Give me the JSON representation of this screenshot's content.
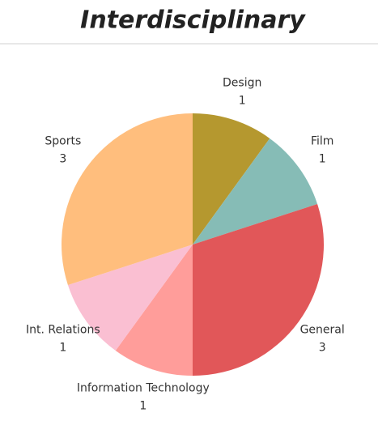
{
  "chart_data": {
    "type": "pie",
    "title": "Interdisciplinary",
    "categories": [
      "Design",
      "Film",
      "General",
      "Information Technology",
      "Int. Relations",
      "Sports"
    ],
    "values": [
      1,
      1,
      3,
      1,
      1,
      3
    ],
    "colors": [
      "#b5982f",
      "#86bcb6",
      "#e15759",
      "#ff9d9a",
      "#fabfd2",
      "#ffbe7d"
    ]
  }
}
